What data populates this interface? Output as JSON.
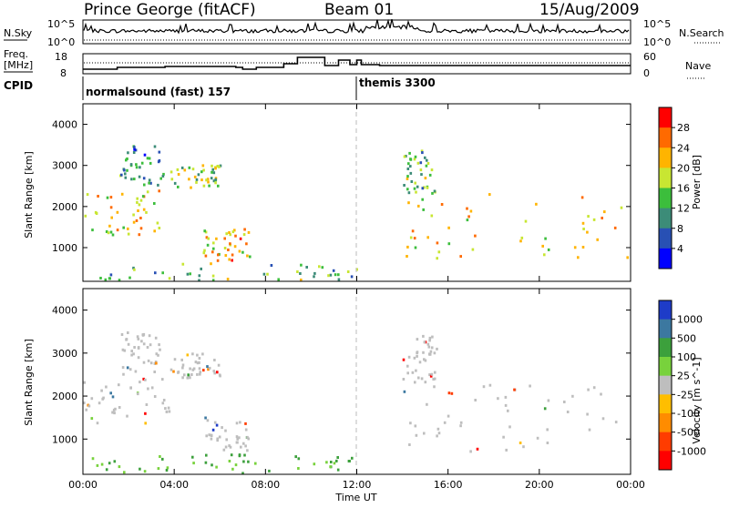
{
  "header": {
    "station": "Prince George (fitACF)",
    "beam": "Beam 01",
    "date": "15/Aug/2009"
  },
  "top_panels": {
    "nsky_label": "N.Sky",
    "nsky_ticks": [
      "10^5",
      "10^0"
    ],
    "nsearch_label": "N.Search",
    "nsearch_ticks": [
      "10^5",
      "10^0"
    ],
    "freq_label_1": "Freq.",
    "freq_label_2": "[MHz]",
    "freq_ticks": [
      "18",
      "8"
    ],
    "nave_label": "Nave",
    "nave_ticks": [
      "60",
      "0"
    ],
    "cpid_label": "CPID",
    "cpid_segments": [
      {
        "label": "normalsound (fast) 157",
        "start_h": 0
      },
      {
        "label": "themis 3300",
        "start_h": 12
      }
    ]
  },
  "chart_data": [
    {
      "type": "heatmap",
      "quantity": "Power",
      "ylabel": "Slant Range [km]",
      "ylim": [
        180,
        4500
      ],
      "yticks": [
        "1000",
        "2000",
        "3000",
        "4000"
      ],
      "xlim_hours": [
        0,
        24
      ],
      "colorbar": {
        "title": "Power [dB]",
        "ticks": [
          "28",
          "24",
          "20",
          "16",
          "12",
          "8",
          "4"
        ],
        "colors": [
          "#ff0000",
          "#ff6a00",
          "#ffb400",
          "#c8e632",
          "#3cbe3c",
          "#3c8c78",
          "#2850b4",
          "#0000ff"
        ]
      },
      "echo_regions": [
        {
          "t0": 0.0,
          "t1": 3.8,
          "r0": 1300,
          "r1": 2400,
          "power": 18
        },
        {
          "t0": 1.5,
          "t1": 3.5,
          "r0": 2500,
          "r1": 3500,
          "power": 8
        },
        {
          "t0": 3.8,
          "t1": 6.0,
          "r0": 2400,
          "r1": 3000,
          "power": 14
        },
        {
          "t0": 5.2,
          "t1": 7.3,
          "r0": 600,
          "r1": 1500,
          "power": 20
        },
        {
          "t0": 0.0,
          "t1": 12.0,
          "r0": 200,
          "r1": 600,
          "power": 12
        },
        {
          "t0": 14.0,
          "t1": 24.0,
          "r0": 700,
          "r1": 2300,
          "power": 18
        },
        {
          "t0": 14.0,
          "t1": 15.5,
          "r0": 2300,
          "r1": 3400,
          "power": 12
        }
      ]
    },
    {
      "type": "heatmap",
      "quantity": "Velocity",
      "ylabel": "Slant Range [km]",
      "ylim": [
        180,
        4500
      ],
      "yticks": [
        "1000",
        "2000",
        "3000",
        "4000"
      ],
      "xlim_hours": [
        0,
        24
      ],
      "xticks": [
        "00:00",
        "04:00",
        "08:00",
        "12:00",
        "16:00",
        "20:00",
        "00:00"
      ],
      "xlabel": "Time UT",
      "colorbar": {
        "title": "Velocity [m s^-1]",
        "ticks": [
          "1000",
          "500",
          "100",
          "25",
          "-25",
          "-100",
          "-500",
          "-1000"
        ],
        "colors": [
          "#1e3cc8",
          "#3c78a0",
          "#3ca03c",
          "#78d23c",
          "#bebebe",
          "#ffbe00",
          "#ff8c00",
          "#ff3c00",
          "#ff0000"
        ]
      },
      "ground_scatter_color": "#bebebe"
    }
  ]
}
